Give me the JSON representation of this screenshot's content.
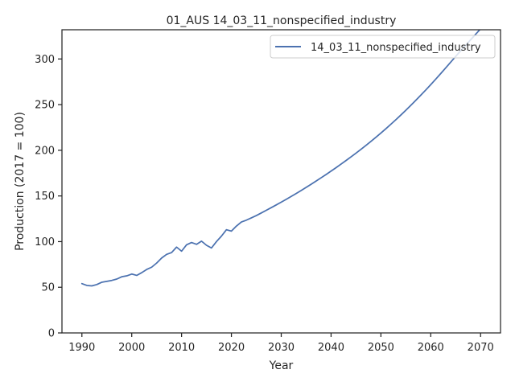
{
  "chart_data": {
    "type": "line",
    "title": "01_AUS 14_03_11_nonspecified_industry",
    "xlabel": "Year",
    "ylabel": "Production (2017 = 100)",
    "xlim": [
      1986,
      2074
    ],
    "ylim": [
      0,
      332
    ],
    "xticks": [
      1990,
      2000,
      2010,
      2020,
      2030,
      2040,
      2050,
      2060,
      2070
    ],
    "yticks": [
      0,
      50,
      100,
      150,
      200,
      250,
      300
    ],
    "grid": false,
    "legend_position": "top-right",
    "series": [
      {
        "name": "14_03_11_nonspecified_industry",
        "color": "#4c72b0",
        "x": [
          1990,
          1991,
          1992,
          1993,
          1994,
          1995,
          1996,
          1997,
          1998,
          1999,
          2000,
          2001,
          2002,
          2003,
          2004,
          2005,
          2006,
          2007,
          2008,
          2009,
          2010,
          2011,
          2012,
          2013,
          2014,
          2015,
          2016,
          2017,
          2018,
          2019,
          2020,
          2021,
          2022,
          2023,
          2024,
          2025,
          2026,
          2027,
          2028,
          2029,
          2030,
          2031,
          2032,
          2033,
          2034,
          2035,
          2036,
          2037,
          2038,
          2039,
          2040,
          2041,
          2042,
          2043,
          2044,
          2045,
          2046,
          2047,
          2048,
          2049,
          2050,
          2051,
          2052,
          2053,
          2054,
          2055,
          2056,
          2057,
          2058,
          2059,
          2060,
          2061,
          2062,
          2063,
          2064,
          2065,
          2066,
          2067,
          2068,
          2069,
          2070
        ],
        "y": [
          54,
          52,
          51.5,
          53,
          55.5,
          56.5,
          57.5,
          59,
          61.5,
          62.5,
          64.5,
          63,
          66,
          69.5,
          72,
          76.5,
          82,
          86,
          88,
          94,
          89.5,
          96.5,
          99,
          97,
          100.5,
          96,
          93,
          100,
          106,
          113,
          111.5,
          117,
          121.5,
          123.5,
          126,
          128.5,
          131.4,
          134.3,
          137.2,
          140.2,
          143.2,
          146.3,
          149.5,
          152.7,
          156,
          159.4,
          162.8,
          166.3,
          169.9,
          173.5,
          177.2,
          181,
          184.9,
          188.8,
          192.8,
          196.9,
          201.1,
          205.4,
          209.8,
          214.3,
          218.9,
          223.6,
          228.5,
          233.5,
          238.6,
          243.8,
          249.2,
          254.7,
          260.3,
          266,
          271.9,
          277.9,
          284,
          290.2,
          296.5,
          302.8,
          309,
          315,
          321,
          327,
          333
        ]
      }
    ]
  }
}
